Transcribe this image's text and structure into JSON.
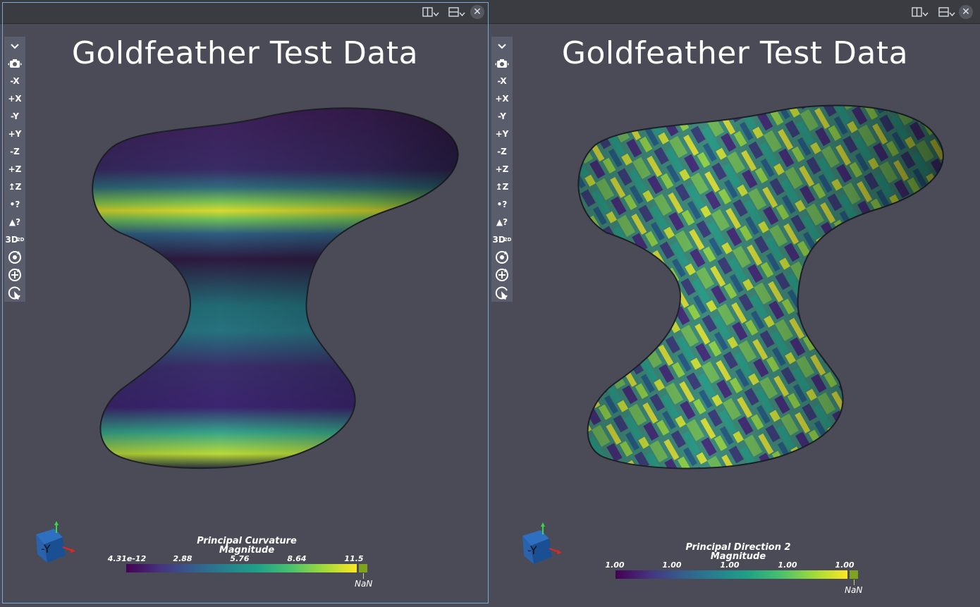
{
  "panes": [
    {
      "id": "left",
      "title": "Goldfeather Test Data",
      "colorbar": {
        "title_line1": "Principal Curvature",
        "title_line2": "Magnitude",
        "ticks": [
          "4.31e-12",
          "2.88",
          "5.76",
          "8.64",
          "11.5"
        ],
        "nan_label": "NaN"
      },
      "orientation_label": "-Y"
    },
    {
      "id": "right",
      "title": "Goldfeather Test Data",
      "colorbar": {
        "title_line1": "Principal Direction 2",
        "title_line2": "Magnitude",
        "ticks": [
          "1.00",
          "1.00",
          "1.00",
          "1.00",
          "1.00"
        ],
        "nan_label": "NaN"
      },
      "orientation_label": "-Y"
    }
  ],
  "toolbar": {
    "items": [
      {
        "label": "⌄",
        "name": "collapse-toolbar-icon"
      },
      {
        "label": "📷",
        "name": "camera-reset-icon"
      },
      {
        "label": "-X",
        "name": "view-neg-x-button"
      },
      {
        "label": "+X",
        "name": "view-pos-x-button"
      },
      {
        "label": "-Y",
        "name": "view-neg-y-button"
      },
      {
        "label": "+Y",
        "name": "view-pos-y-button"
      },
      {
        "label": "-Z",
        "name": "view-neg-z-button"
      },
      {
        "label": "+Z",
        "name": "view-pos-z-button"
      },
      {
        "label": "↥Z",
        "name": "rotate-z-icon"
      },
      {
        "label": "•?",
        "name": "select-points-icon"
      },
      {
        "label": "▲?",
        "name": "select-cells-icon"
      },
      {
        "label": "3D",
        "name": "toggle-3d-2d-button"
      },
      {
        "label": "⟳",
        "name": "rotate-about-center-icon"
      },
      {
        "label": "⊕",
        "name": "zoom-to-box-icon"
      },
      {
        "label": "↻",
        "name": "interact-select-icon"
      }
    ]
  },
  "header_icons": [
    "split-horizontal-icon",
    "split-vertical-icon",
    "close-icon"
  ],
  "colors": {
    "viewport_bg": "#4b4b57",
    "nan_color": "#7fa31d",
    "active_border": "#7aa9d8"
  }
}
